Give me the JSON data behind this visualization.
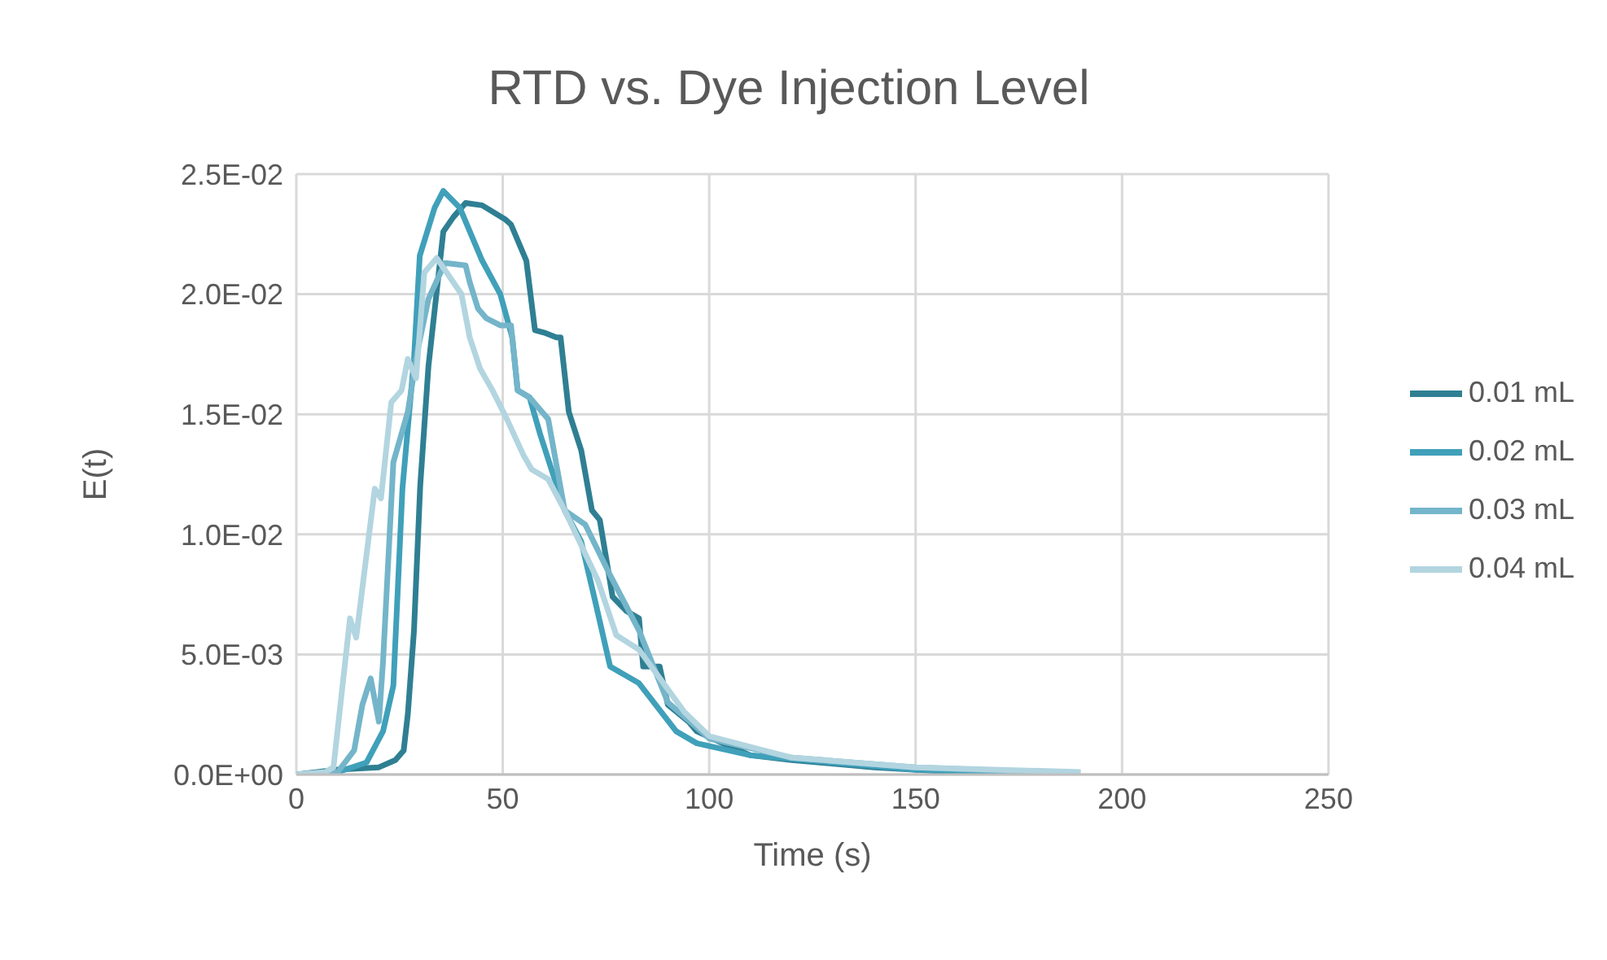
{
  "chart_data": {
    "type": "line",
    "title": "RTD vs. Dye Injection Level",
    "xlabel": "Time (s)",
    "ylabel": "E(t)",
    "xlim": [
      0,
      250
    ],
    "xticks": [
      0,
      50,
      100,
      150,
      200,
      250
    ],
    "ylim": [
      0,
      0.025
    ],
    "yticks": [
      {
        "value": 0,
        "label": "0.0E+00"
      },
      {
        "value": 0.005,
        "label": "5.0E-03"
      },
      {
        "value": 0.01,
        "label": "1.0E-02"
      },
      {
        "value": 0.015,
        "label": "1.5E-02"
      },
      {
        "value": 0.02,
        "label": "2.0E-02"
      },
      {
        "value": 0.025,
        "label": "2.5E-02"
      }
    ],
    "grid": true,
    "legend": "right",
    "marker": "none",
    "line_style": "solid",
    "series": [
      {
        "name": "0.01 mL",
        "color": "#2f7f93",
        "x": [
          0,
          10,
          20,
          24,
          26,
          27,
          28.5,
          30,
          32,
          35.6,
          38,
          41,
          45,
          50.7,
          52,
          55.7,
          57.8,
          60,
          63,
          64,
          66,
          69,
          71.6,
          73.5,
          76.6,
          80,
          83,
          84,
          88,
          90,
          95,
          97,
          102,
          110,
          120,
          140,
          160,
          172
        ],
        "values": [
          0,
          0.0002,
          0.0003,
          0.0006,
          0.001,
          0.0025,
          0.006,
          0.012,
          0.017,
          0.0226,
          0.0232,
          0.0238,
          0.0237,
          0.0231,
          0.0229,
          0.0214,
          0.0185,
          0.0184,
          0.0182,
          0.0182,
          0.0151,
          0.0135,
          0.011,
          0.0106,
          0.0074,
          0.0068,
          0.0065,
          0.0045,
          0.0045,
          0.0029,
          0.0022,
          0.0018,
          0.0014,
          0.0008,
          0.0006,
          0.0003,
          0.0001,
          0
        ]
      },
      {
        "name": "0.02 mL",
        "color": "#40a0ba",
        "x": [
          0,
          10,
          17,
          21,
          23.5,
          25.7,
          28.5,
          29.9,
          33.5,
          35.6,
          39.6,
          45,
          49.4,
          52.3,
          53.6,
          56.5,
          59,
          65,
          69,
          72,
          76,
          83,
          92,
          97,
          110,
          130,
          150,
          172
        ],
        "values": [
          0,
          0.0001,
          0.0005,
          0.0018,
          0.0037,
          0.0119,
          0.0173,
          0.0216,
          0.0236,
          0.0243,
          0.0236,
          0.0214,
          0.02,
          0.0182,
          0.016,
          0.0157,
          0.0142,
          0.011,
          0.0097,
          0.0075,
          0.0045,
          0.0038,
          0.0018,
          0.0013,
          0.0008,
          0.0005,
          0.0002,
          0.0001
        ]
      },
      {
        "name": "0.03 mL",
        "color": "#74b5ca",
        "x": [
          0,
          10,
          14,
          16,
          18,
          20,
          21,
          23.5,
          27,
          29.3,
          32,
          36,
          41,
          42,
          44,
          46,
          49.4,
          52,
          53.6,
          56.5,
          61,
          65,
          70,
          76,
          83,
          90,
          100,
          120,
          150,
          180
        ],
        "values": [
          0,
          0.0001,
          0.001,
          0.0029,
          0.004,
          0.0022,
          0.0047,
          0.013,
          0.0151,
          0.0176,
          0.0198,
          0.0213,
          0.0212,
          0.0205,
          0.0194,
          0.019,
          0.0187,
          0.0187,
          0.016,
          0.0157,
          0.0148,
          0.011,
          0.0104,
          0.0083,
          0.006,
          0.003,
          0.0015,
          0.0007,
          0.0003,
          0.0001
        ]
      },
      {
        "name": "0.04 mL",
        "color": "#b2d5e0",
        "x": [
          0,
          7,
          9,
          13,
          14.5,
          19,
          20.5,
          23,
          25.5,
          27,
          29,
          31,
          34,
          40,
          42,
          44.5,
          47.5,
          51,
          55,
          57,
          61,
          65,
          73,
          77.5,
          83,
          94,
          100,
          120,
          150,
          190
        ],
        "values": [
          0,
          0.0001,
          0.0003,
          0.0065,
          0.0057,
          0.0119,
          0.0115,
          0.0155,
          0.016,
          0.0173,
          0.0165,
          0.0209,
          0.0215,
          0.02,
          0.0182,
          0.0169,
          0.016,
          0.0148,
          0.0133,
          0.0127,
          0.0123,
          0.011,
          0.0081,
          0.0058,
          0.0052,
          0.0026,
          0.0016,
          0.0007,
          0.0003,
          0.0001
        ]
      }
    ]
  }
}
